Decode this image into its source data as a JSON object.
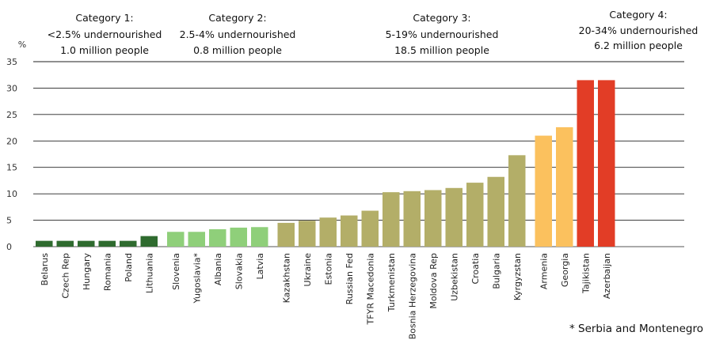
{
  "chart_data": {
    "type": "bar",
    "ylabel": "%",
    "ylim": [
      0,
      35
    ],
    "yticks": [
      "0",
      "5",
      "10",
      "15",
      "20",
      "25",
      "30",
      "35"
    ],
    "grid": true,
    "categories": [
      "Belarus",
      "Czech Rep",
      "Hungary",
      "Romania",
      "Poland",
      "Lithuania",
      "Slovenia",
      "Yugoslavia*",
      "Albania",
      "Slovakia",
      "Latvia",
      "Kazakhstan",
      "Ukraine",
      "Estonia",
      "Russian Fed",
      "TFYR Macedonia",
      "Turkmenistan",
      "Bosnia Herzegovina",
      "Moldova Rep",
      "Uzbekistan",
      "Croatia",
      "Bulgaria",
      "Kyrgyzstan",
      "Armenia",
      "Georgia",
      "Tajikistan",
      "Azerbaijan"
    ],
    "values": [
      1.1,
      1.1,
      1.1,
      1.1,
      1.1,
      2.0,
      2.8,
      2.8,
      3.3,
      3.6,
      3.7,
      4.5,
      4.9,
      5.5,
      5.9,
      6.8,
      10.3,
      10.5,
      10.7,
      11.1,
      12.1,
      13.2,
      17.3,
      21.0,
      22.6,
      31.5,
      31.5
    ],
    "groups": [
      {
        "title": "Category 1:",
        "line1": "<2.5% undernourished",
        "line2": "1.0 million people",
        "color": "#2f6b2f",
        "count": 6
      },
      {
        "title": "Category 2:",
        "line1": "2.5-4% undernourished",
        "line2": "0.8 million people",
        "color": "#8fcf7a",
        "count": 5
      },
      {
        "title": "Category 3:",
        "line1": "5-19% undernourished",
        "line2": "18.5 million people",
        "color": "#b3ae68",
        "count": 12
      },
      {
        "title": "Category 4:",
        "line1": "20-34% undernourished",
        "line2": "6.2 million people",
        "color": null,
        "count": 4
      }
    ],
    "bar_colors_group4": [
      "#fbc15e",
      "#fbc15e",
      "#e23d26",
      "#e23d26"
    ],
    "footnote": "* Serbia and Montenegro"
  }
}
